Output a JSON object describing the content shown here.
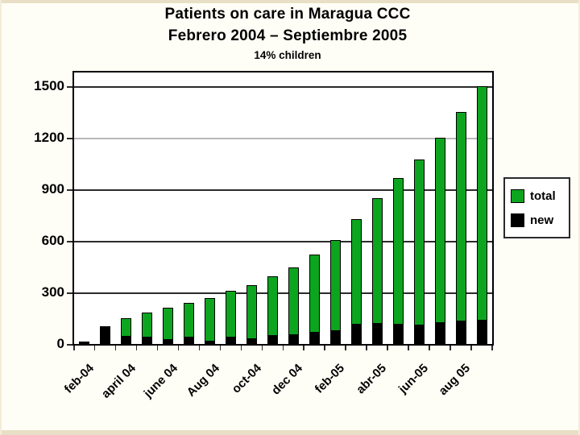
{
  "slide": {
    "title_line1": "Patients on care in Maragua CCC",
    "title_line2": "Febrero 2004 – Septiembre 2005",
    "title_line3": "14% children"
  },
  "legend": {
    "items": [
      {
        "label": "total",
        "color": "#0DA51F"
      },
      {
        "label": "new",
        "color": "#000000"
      }
    ]
  },
  "colors": {
    "bar_green": "#0DA51F",
    "bar_black": "#000000",
    "gridline": "#2b2b2b",
    "gridline_light": "#b9b9b9",
    "slide_background": "#FFFEF6",
    "slide_edge": "#E9DFC6"
  },
  "chart_data": {
    "type": "bar",
    "stacked": true,
    "title": "Patients on care in Maragua CCC",
    "subtitle": "Febrero 2004 – Septiembre 2005",
    "note": "14% children",
    "categories": [
      "feb-04",
      "",
      "april 04",
      "",
      "june 04",
      "",
      "Aug 04",
      "",
      "oct-04",
      "",
      "dec 04",
      "",
      "feb-05",
      "",
      "abr-05",
      "",
      "jun-05",
      "",
      "aug 05",
      ""
    ],
    "series": [
      {
        "name": "total",
        "color": "#0DA51F",
        "values": [
          15,
          105,
          150,
          185,
          210,
          240,
          265,
          310,
          340,
          395,
          445,
          520,
          605,
          725,
          850,
          965,
          1075,
          1200,
          1350,
          1500
        ]
      },
      {
        "name": "new",
        "color": "#000000",
        "values": [
          15,
          100,
          48,
          43,
          26,
          40,
          20,
          40,
          32,
          52,
          54,
          70,
          78,
          118,
          124,
          116,
          112,
          126,
          138,
          140
        ]
      }
    ],
    "xlabel": "",
    "ylabel": "",
    "ylim": [
      0,
      1500
    ],
    "yticks": [
      0,
      300,
      600,
      900,
      1200,
      1500
    ],
    "light_gridline_at": 1200,
    "grid": "horizontal",
    "legend_position": "right"
  }
}
